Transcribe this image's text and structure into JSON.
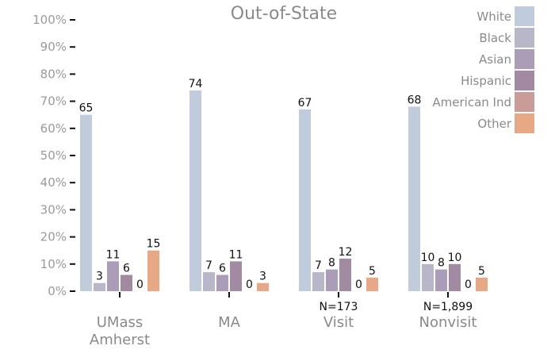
{
  "chart_data": {
    "type": "bar",
    "title": "Out-of-State",
    "ylim": [
      0,
      100
    ],
    "yticks": [
      "0%",
      "10%",
      "20%",
      "30%",
      "40%",
      "50%",
      "60%",
      "70%",
      "80%",
      "90%",
      "100%"
    ],
    "categories": [
      {
        "lines": [
          "UMass",
          "Amherst"
        ],
        "note": ""
      },
      {
        "lines": [
          "MA"
        ],
        "note": ""
      },
      {
        "lines": [
          "Visit"
        ],
        "note": "N=173"
      },
      {
        "lines": [
          "Nonvisit"
        ],
        "note": "N=1,899"
      }
    ],
    "series": [
      {
        "name": "White",
        "color": "#c0cbdb",
        "values": [
          65,
          74,
          67,
          68
        ]
      },
      {
        "name": "Black",
        "color": "#b8b6c9",
        "values": [
          3,
          7,
          7,
          10
        ]
      },
      {
        "name": "Asian",
        "color": "#ab9db8",
        "values": [
          11,
          6,
          8,
          8
        ]
      },
      {
        "name": "Hispanic",
        "color": "#a28aa3",
        "values": [
          6,
          11,
          12,
          10
        ]
      },
      {
        "name": "American Ind",
        "color": "#c99c9a",
        "values": [
          0,
          0,
          0,
          0
        ]
      },
      {
        "name": "Other",
        "color": "#e7a886",
        "values": [
          15,
          3,
          5,
          5
        ]
      }
    ],
    "legend_position": "top-right",
    "grid": false
  }
}
